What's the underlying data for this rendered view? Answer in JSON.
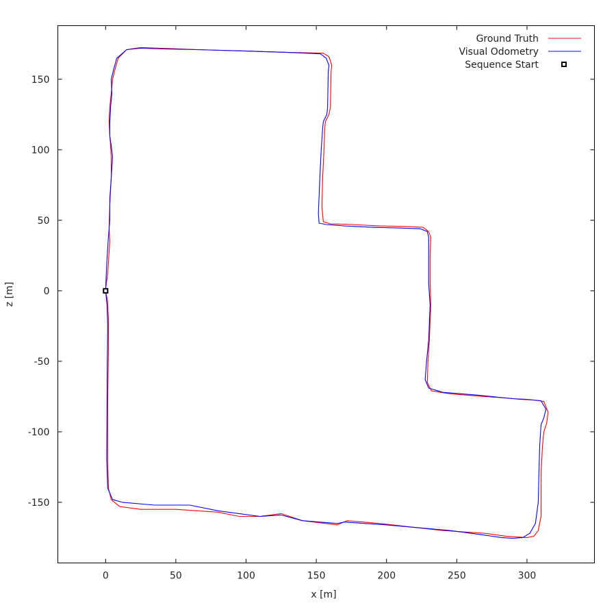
{
  "chart_data": {
    "type": "line",
    "xlabel": "x [m]",
    "ylabel": "z [m]",
    "xlim": [
      -34,
      348
    ],
    "ylim": [
      -193,
      188
    ],
    "x_ticks": [
      0,
      50,
      100,
      150,
      200,
      250,
      300
    ],
    "y_ticks": [
      -150,
      -100,
      -50,
      0,
      50,
      100,
      150
    ],
    "grid": false,
    "legend_position": "top-right",
    "series": [
      {
        "name": "Ground Truth",
        "color": "#ff0000",
        "x": [
          0,
          1.5,
          2,
          2,
          1.5,
          1.5,
          2,
          4,
          10,
          25,
          50,
          80,
          95,
          110,
          125,
          140,
          165,
          172,
          195,
          240,
          270,
          285,
          292,
          300,
          305,
          308,
          310,
          310,
          311,
          312,
          314,
          315,
          312,
          305,
          295,
          285,
          270,
          245,
          232,
          229,
          229.5,
          230.5,
          231.5,
          231,
          231,
          231.5,
          230,
          226,
          215,
          195,
          175,
          160,
          155,
          154,
          154.5,
          155.5,
          156,
          156.5,
          159,
          160,
          160.5,
          161,
          159,
          155,
          130,
          100,
          65,
          40,
          25,
          15,
          9,
          7,
          5,
          4,
          3,
          2.5,
          3,
          3.5,
          4,
          4,
          3,
          2.5,
          3,
          2,
          1.5,
          0.5,
          0
        ],
        "y": [
          0,
          -8,
          -20,
          -45,
          -80,
          -120,
          -140,
          -148,
          -153,
          -155,
          -155,
          -157,
          -160,
          -160,
          -158,
          -163,
          -166,
          -163,
          -165,
          -170,
          -172,
          -174,
          -174.5,
          -175,
          -174,
          -170,
          -160,
          -130,
          -110,
          -100,
          -94,
          -86,
          -78.5,
          -77.5,
          -77,
          -76,
          -75,
          -73,
          -71,
          -65,
          -50,
          -35,
          -10,
          5,
          25,
          38,
          42,
          45,
          45.5,
          46,
          47,
          47.5,
          49,
          60,
          80,
          100,
          115,
          120,
          125,
          130,
          155,
          160,
          166,
          168.5,
          169,
          170,
          171,
          172,
          172.5,
          171,
          165,
          158,
          150,
          140,
          130,
          120,
          110,
          103,
          95,
          80,
          60,
          45,
          35,
          20,
          12,
          5,
          0
        ]
      },
      {
        "name": "Visual Odometry",
        "color": "#0000ff",
        "x": [
          0,
          1,
          1.5,
          1.2,
          1,
          0.8,
          1.5,
          5,
          12,
          35,
          60,
          80,
          95,
          110,
          125,
          140,
          165,
          170,
          200,
          245,
          268,
          282,
          290,
          297,
          302,
          306,
          308,
          308.5,
          309,
          310,
          312,
          313.5,
          310,
          300,
          290,
          280,
          265,
          240,
          230,
          227.5,
          228.5,
          230,
          231,
          230,
          230,
          230,
          229,
          224,
          210,
          190,
          170,
          157,
          152,
          151.5,
          152.5,
          153.5,
          154.5,
          155,
          157.5,
          158,
          158.5,
          159,
          157,
          153,
          130,
          100,
          65,
          40,
          25,
          15,
          8,
          6,
          4,
          4.5,
          3.5,
          3,
          3,
          4,
          5,
          4,
          3,
          3,
          2,
          1,
          0.5,
          0.2,
          0
        ],
        "y": [
          0,
          -10,
          -25,
          -50,
          -85,
          -120,
          -140,
          -148,
          -150,
          -152,
          -152,
          -156,
          -158,
          -160,
          -159,
          -163,
          -165,
          -164,
          -166,
          -170,
          -173,
          -175,
          -175.5,
          -175,
          -172,
          -165,
          -150,
          -130,
          -110,
          -95,
          -90,
          -84,
          -78,
          -77,
          -76.5,
          -75.5,
          -74,
          -72,
          -69,
          -63,
          -50,
          -35,
          -10,
          5,
          25,
          38,
          42,
          44,
          44.5,
          45,
          46,
          47,
          48,
          55,
          80,
          100,
          115,
          120,
          125,
          130,
          155,
          160,
          165,
          168,
          169,
          170,
          171,
          171.5,
          172,
          171,
          165,
          158,
          150,
          140,
          130,
          118,
          110,
          103,
          95,
          80,
          65,
          50,
          38,
          22,
          12,
          5,
          0
        ]
      },
      {
        "name": "Sequence Start",
        "marker": "square",
        "color": "#000000",
        "x": [
          0
        ],
        "y": [
          0
        ]
      }
    ]
  }
}
